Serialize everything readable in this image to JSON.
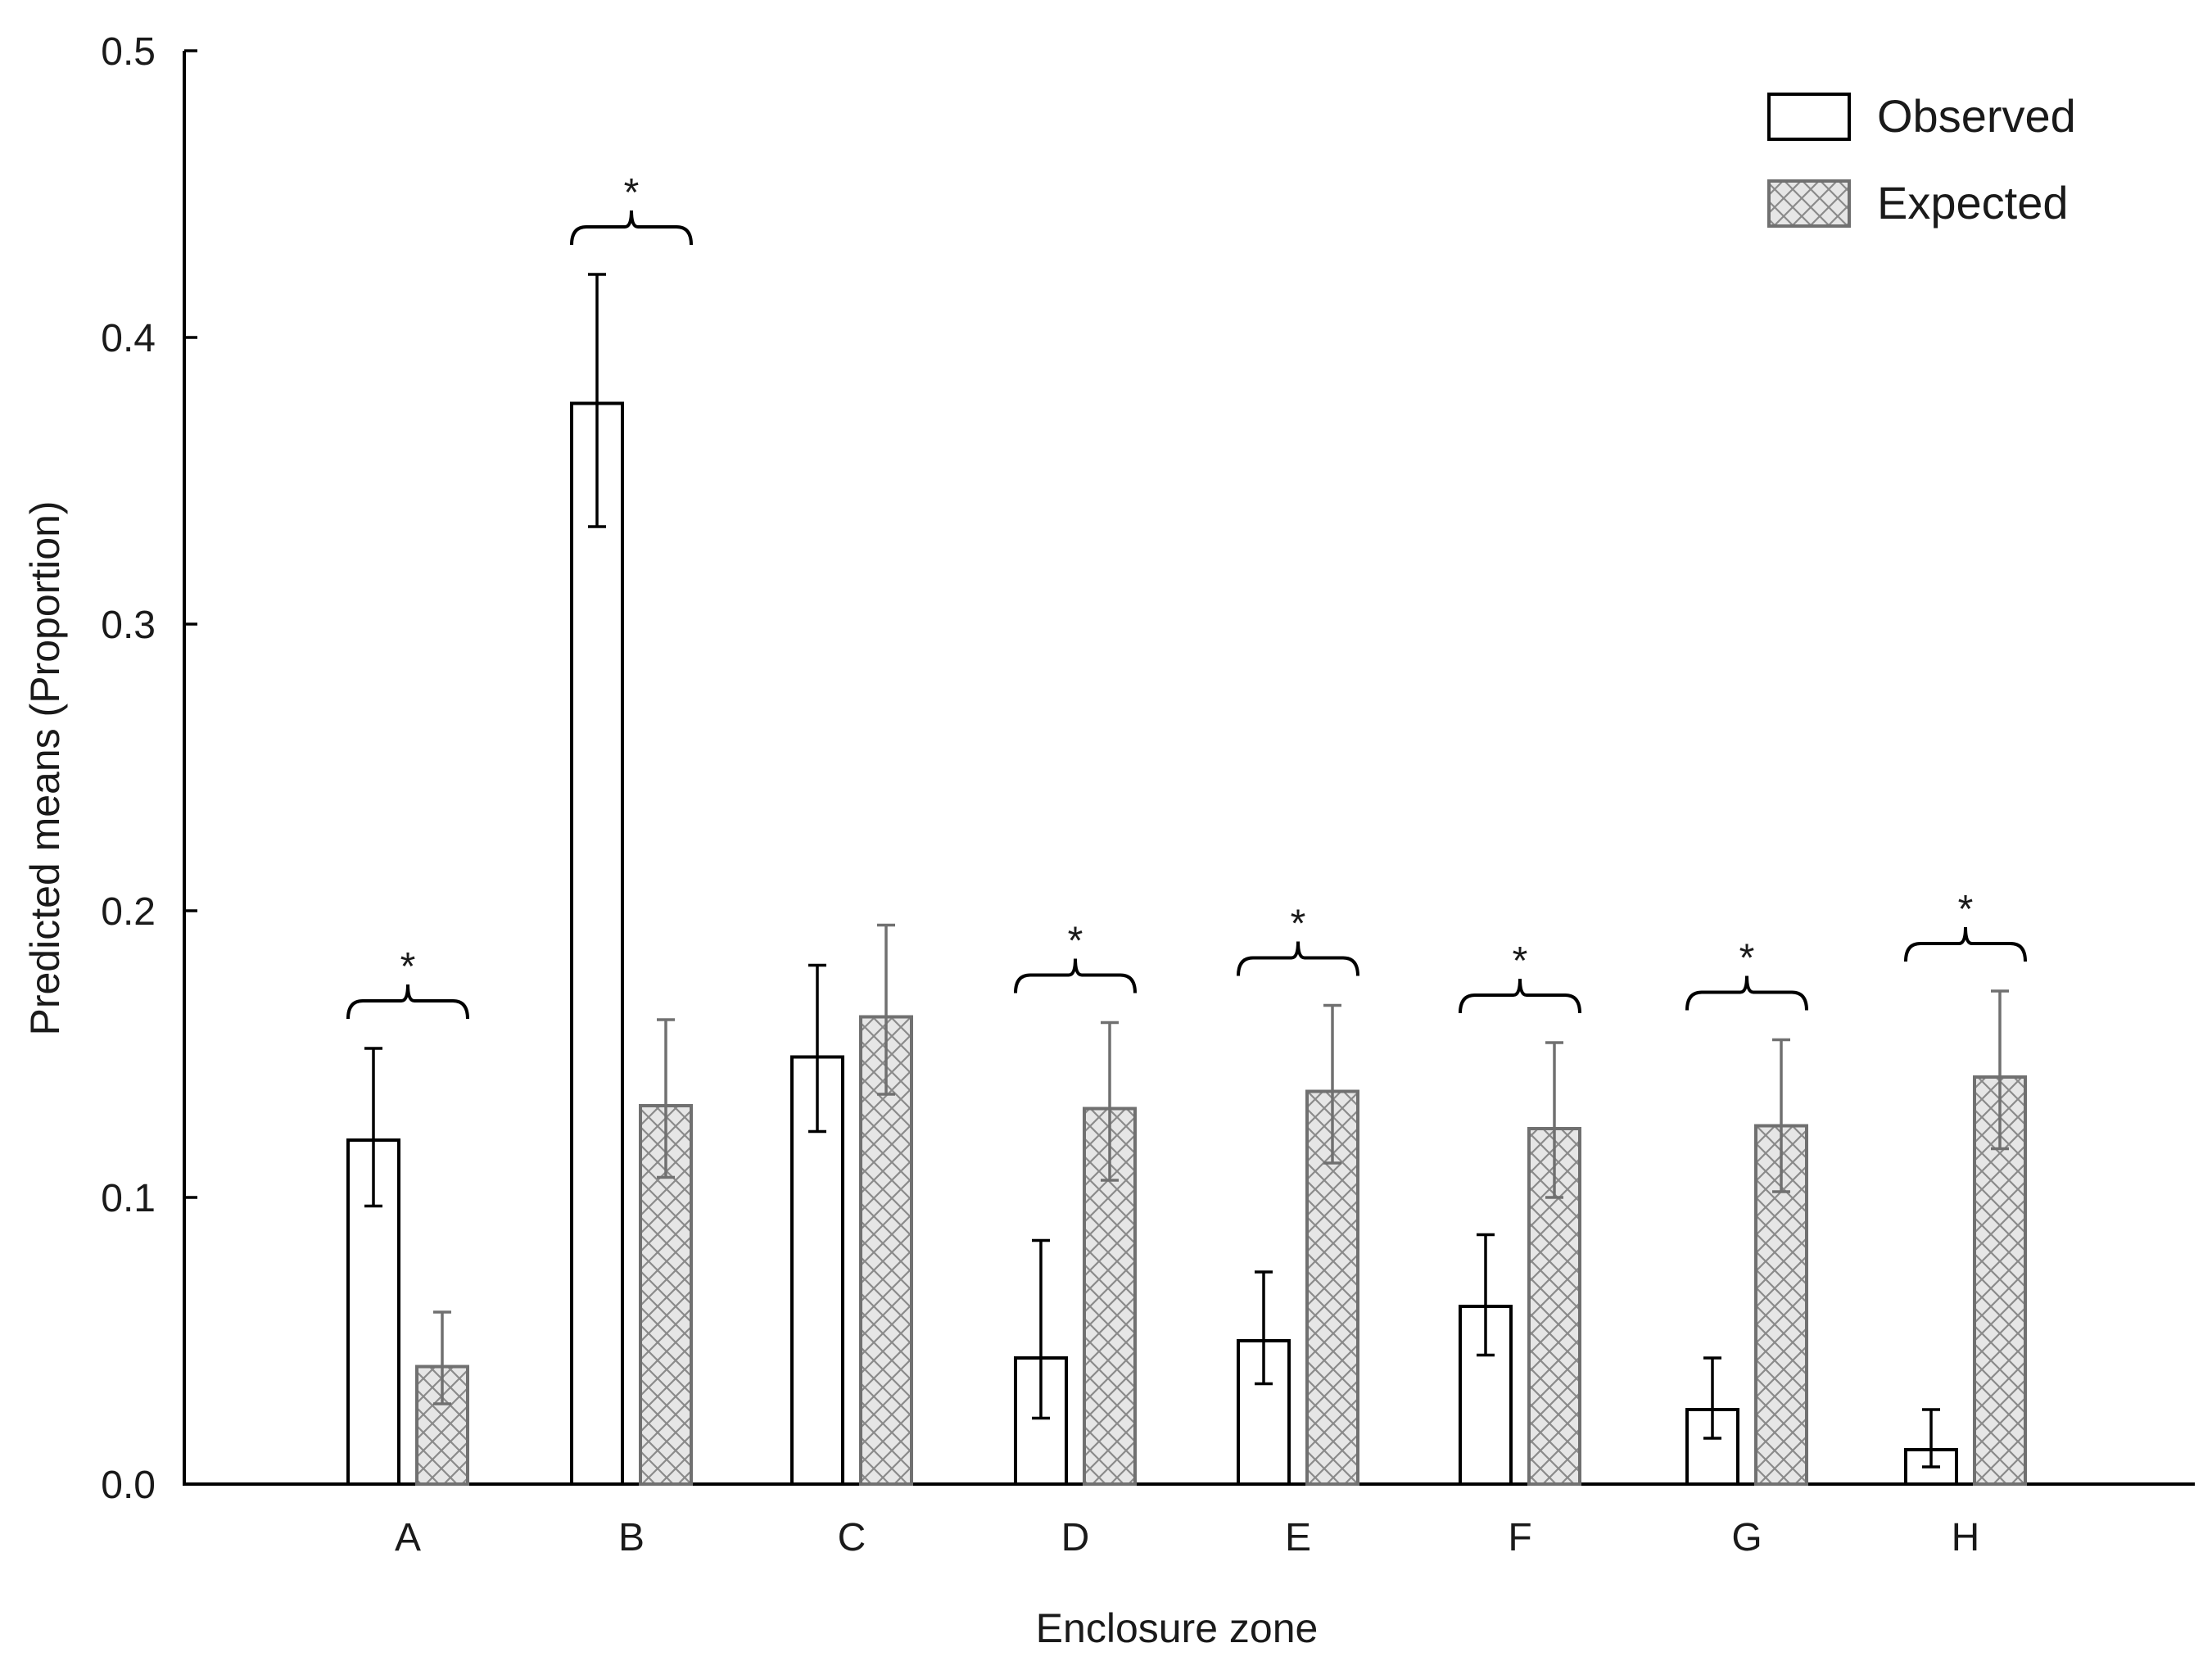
{
  "chart_data": {
    "type": "bar",
    "categories": [
      "A",
      "B",
      "C",
      "D",
      "E",
      "F",
      "G",
      "H"
    ],
    "series": [
      {
        "name": "Observed",
        "values": [
          0.12,
          0.377,
          0.149,
          0.044,
          0.05,
          0.062,
          0.026,
          0.012
        ],
        "error_low": [
          0.097,
          0.334,
          0.123,
          0.023,
          0.035,
          0.045,
          0.016,
          0.006
        ],
        "error_high": [
          0.152,
          0.422,
          0.181,
          0.085,
          0.074,
          0.087,
          0.044,
          0.026
        ]
      },
      {
        "name": "Expected",
        "values": [
          0.041,
          0.132,
          0.163,
          0.131,
          0.137,
          0.124,
          0.125,
          0.142
        ],
        "error_low": [
          0.028,
          0.107,
          0.136,
          0.106,
          0.112,
          0.1,
          0.102,
          0.117
        ],
        "error_high": [
          0.06,
          0.162,
          0.195,
          0.161,
          0.167,
          0.154,
          0.155,
          0.172
        ]
      }
    ],
    "significance": [
      true,
      true,
      false,
      true,
      true,
      true,
      true,
      true
    ],
    "significance_mark": "*",
    "xlabel": "Enclosure zone",
    "ylabel": "Predicted means (Proportion)",
    "ylim": [
      0.0,
      0.5
    ],
    "yticks": [
      "0.0",
      "0.1",
      "0.2",
      "0.3",
      "0.4",
      "0.5"
    ],
    "grid": false,
    "legend_position": "top-right",
    "colors": {
      "observed_fill": "#ffffff",
      "observed_stroke": "#000000",
      "expected_fill": "#e6e6e6",
      "expected_stroke": "#707070",
      "expected_hatch": "#8a8a8a",
      "axis": "#000000"
    }
  }
}
